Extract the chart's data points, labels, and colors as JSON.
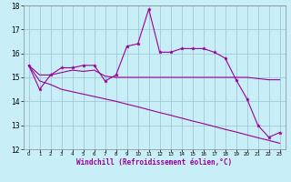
{
  "xlabel": "Windchill (Refroidissement éolien,°C)",
  "x": [
    0,
    1,
    2,
    3,
    4,
    5,
    6,
    7,
    8,
    9,
    10,
    11,
    12,
    13,
    14,
    15,
    16,
    17,
    18,
    19,
    20,
    21,
    22,
    23
  ],
  "line1": [
    15.5,
    14.5,
    15.1,
    15.4,
    15.4,
    15.5,
    15.5,
    14.85,
    15.1,
    16.3,
    16.4,
    17.85,
    16.05,
    16.05,
    16.2,
    16.2,
    16.2,
    16.05,
    15.8,
    14.9,
    14.1,
    13.0,
    12.5,
    12.7
  ],
  "line2": [
    15.5,
    15.1,
    15.1,
    15.2,
    15.3,
    15.25,
    15.3,
    15.05,
    15.0,
    15.0,
    15.0,
    15.0,
    15.0,
    15.0,
    15.0,
    15.0,
    15.0,
    15.0,
    15.0,
    15.0,
    15.0,
    14.95,
    14.9,
    14.9
  ],
  "line3": [
    15.5,
    14.85,
    14.7,
    14.5,
    14.4,
    14.3,
    14.2,
    14.1,
    14.0,
    13.88,
    13.77,
    13.65,
    13.53,
    13.42,
    13.3,
    13.18,
    13.07,
    12.95,
    12.83,
    12.72,
    12.6,
    12.48,
    12.37,
    12.25
  ],
  "line_color": "#990099",
  "bg_color": "#c8eef8",
  "grid_color": "#9bbfcf",
  "ylim": [
    12,
    18
  ],
  "xlim": [
    -0.5,
    23.5
  ],
  "yticks": [
    12,
    13,
    14,
    15,
    16,
    17,
    18
  ],
  "xticks": [
    0,
    1,
    2,
    3,
    4,
    5,
    6,
    7,
    8,
    9,
    10,
    11,
    12,
    13,
    14,
    15,
    16,
    17,
    18,
    19,
    20,
    21,
    22,
    23
  ]
}
